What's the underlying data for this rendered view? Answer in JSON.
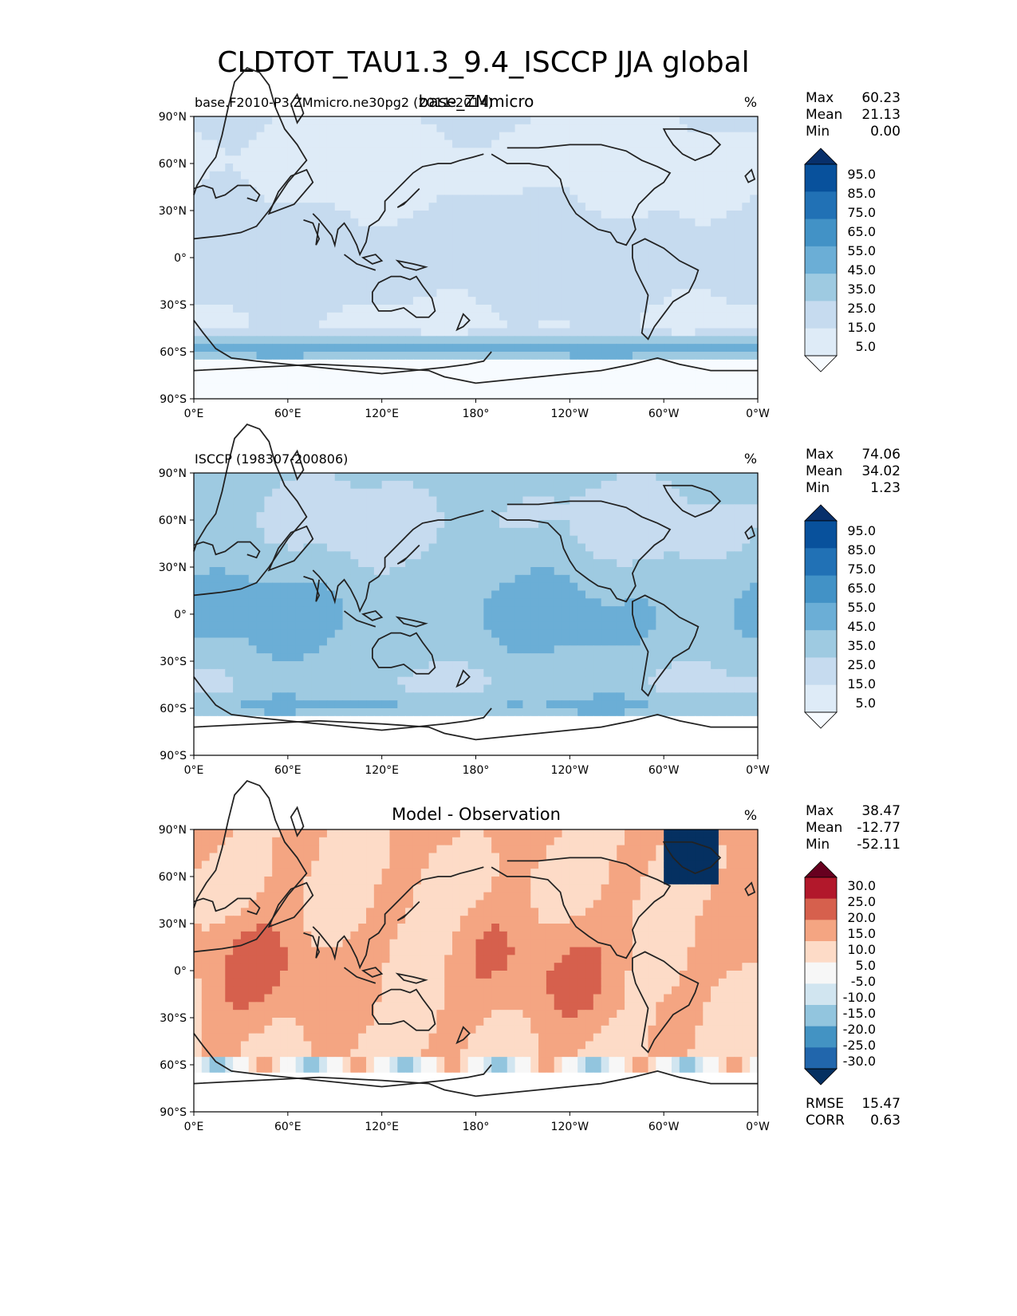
{
  "title": "CLDTOT_TAU1.3_9.4_ISCCP JJA global",
  "lat_ticks": [
    "90°N",
    "60°N",
    "30°N",
    "0°",
    "30°S",
    "60°S",
    "90°S"
  ],
  "lon_ticks": [
    "0°E",
    "60°E",
    "120°E",
    "180°",
    "120°W",
    "60°W",
    "0°W"
  ],
  "colors": {
    "blues": [
      "#f7fbff",
      "#deebf7",
      "#c6dbef",
      "#9ecae1",
      "#6baed6",
      "#4292c6",
      "#2171b5",
      "#08519c",
      "#08306b"
    ],
    "diverging": [
      "#67001f",
      "#b2182b",
      "#d6604d",
      "#f4a582",
      "#fddbc7",
      "#f7f7f7",
      "#d1e5f0",
      "#92c5de",
      "#4393c3",
      "#2166ac",
      "#053061"
    ],
    "coast": "#222222"
  },
  "panels": [
    {
      "id": "test",
      "left_label": "base.F2010-P3.ZMmicro.ne30pg2 (2011-2014)",
      "center_label": "base_ZMmicro",
      "units": "%",
      "stats": {
        "max_label": "Max",
        "max": "60.23",
        "mean_label": "Mean",
        "mean": "21.13",
        "min_label": "Min",
        "min": "0.00"
      },
      "colorbar": {
        "type": "sequential",
        "labels": [
          "95.0",
          "85.0",
          "75.0",
          "65.0",
          "55.0",
          "45.0",
          "35.0",
          "25.0",
          "15.0",
          "5.0"
        ]
      }
    },
    {
      "id": "reference",
      "left_label": "ISCCP (198307-200806)",
      "center_label": "",
      "units": "%",
      "stats": {
        "max_label": "Max",
        "max": "74.06",
        "mean_label": "Mean",
        "mean": "34.02",
        "min_label": "Min",
        "min": "1.23"
      },
      "colorbar": {
        "type": "sequential",
        "labels": [
          "95.0",
          "85.0",
          "75.0",
          "65.0",
          "55.0",
          "45.0",
          "35.0",
          "25.0",
          "15.0",
          "5.0"
        ]
      }
    },
    {
      "id": "difference",
      "left_label": "",
      "center_label": "Model - Observation",
      "units": "%",
      "stats": {
        "max_label": "Max",
        "max": "38.47",
        "mean_label": "Mean",
        "mean": "-12.77",
        "min_label": "Min",
        "min": "-52.11"
      },
      "colorbar": {
        "type": "diverging",
        "labels": [
          "30.0",
          "25.0",
          "20.0",
          "15.0",
          "10.0",
          "5.0",
          "-5.0",
          "-10.0",
          "-15.0",
          "-20.0",
          "-25.0",
          "-30.0"
        ]
      },
      "metrics": {
        "rmse_label": "RMSE",
        "rmse": "15.47",
        "corr_label": "CORR",
        "corr": "0.63"
      }
    }
  ]
}
